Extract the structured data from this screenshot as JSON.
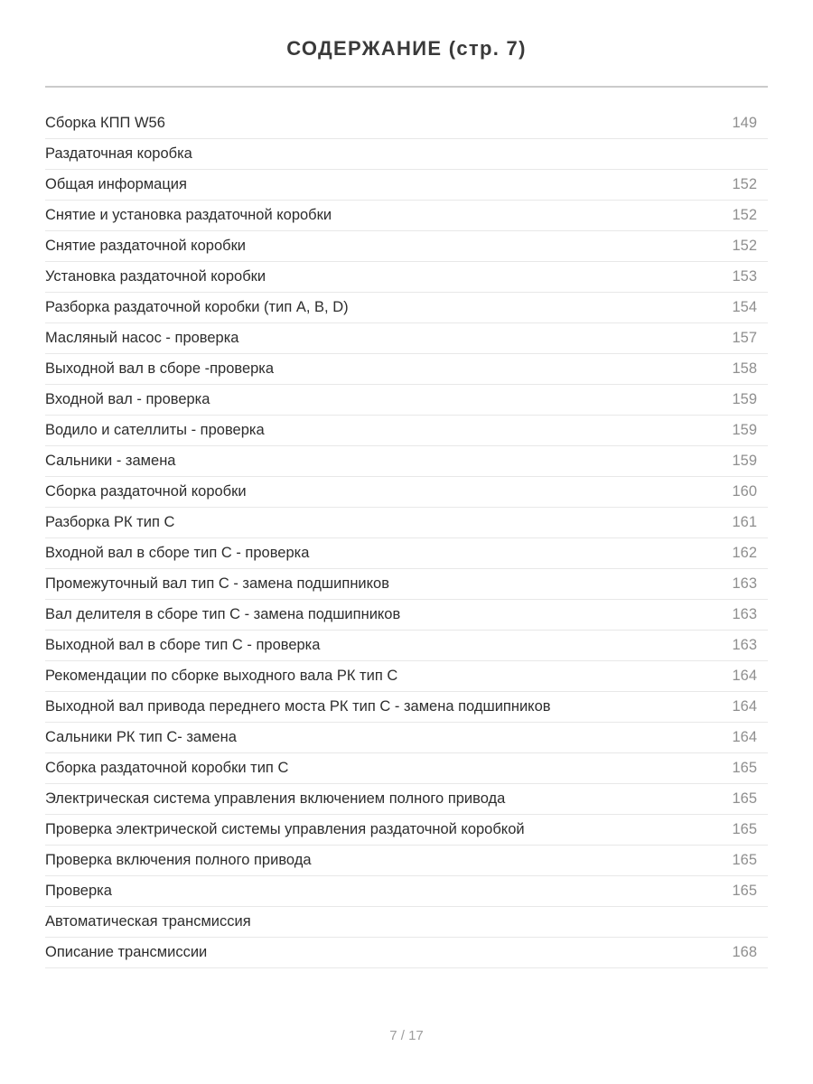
{
  "header": {
    "title": "СОДЕРЖАНИЕ (стр. 7)"
  },
  "toc": {
    "entries": [
      {
        "label": "Сборка КПП W56",
        "page": "149"
      },
      {
        "label": "Раздаточная коробка",
        "page": ""
      },
      {
        "label": "Общая информация",
        "page": "152"
      },
      {
        "label": "Снятие и установка раздаточной коробки",
        "page": "152"
      },
      {
        "label": "Снятие раздаточной коробки",
        "page": "152"
      },
      {
        "label": "Установка раздаточной коробки",
        "page": "153"
      },
      {
        "label": "Разборка раздаточной коробки (тип A, B, D)",
        "page": "154"
      },
      {
        "label": "Масляный насос - проверка",
        "page": "157"
      },
      {
        "label": "Выходной вал в сборе -проверка",
        "page": "158"
      },
      {
        "label": "Входной вал - проверка",
        "page": "159"
      },
      {
        "label": "Водило и сателлиты - проверка",
        "page": "159"
      },
      {
        "label": "Сальники - замена",
        "page": "159"
      },
      {
        "label": "Сборка раздаточной коробки",
        "page": "160"
      },
      {
        "label": "Разборка РК тип С",
        "page": "161"
      },
      {
        "label": "Входной вал в сборе тип С - проверка",
        "page": "162"
      },
      {
        "label": "Промежуточный вал тип С - замена подшипников",
        "page": "163"
      },
      {
        "label": "Вал делителя в сборе тип С - замена подшипников",
        "page": "163"
      },
      {
        "label": "Выходной вал в сборе тип С - проверка",
        "page": "163"
      },
      {
        "label": "Рекомендации по сборке выходного вала РК тип С",
        "page": "164"
      },
      {
        "label": "Выходной вал привода переднего моста РК тип С - замена подшипников",
        "page": "164"
      },
      {
        "label": "Сальники РК тип С- замена",
        "page": "164"
      },
      {
        "label": "Сборка раздаточной коробки тип С",
        "page": "165"
      },
      {
        "label": "Электрическая система управления включением полного привода",
        "page": "165"
      },
      {
        "label": "Проверка электрической системы управления раздаточной коробкой",
        "page": "165"
      },
      {
        "label": "Проверка включения полного привода",
        "page": "165"
      },
      {
        "label": "Проверка",
        "page": "165"
      },
      {
        "label": "Автоматическая трансмиссия",
        "page": ""
      },
      {
        "label": "Описание трансмиссии",
        "page": "168"
      }
    ]
  },
  "footer": {
    "page_indicator": "7 / 17"
  }
}
